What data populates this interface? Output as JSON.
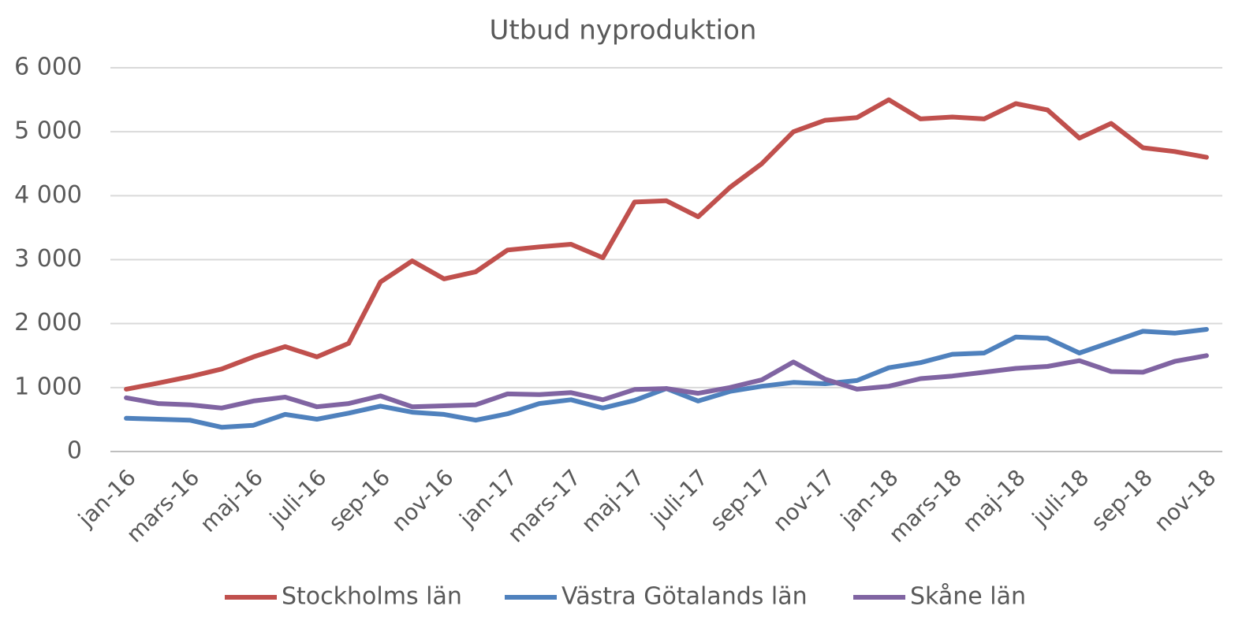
{
  "chart_data": {
    "type": "line",
    "title": "Utbud nyproduktion",
    "categories": [
      "jan-16",
      null,
      "mars-16",
      null,
      "maj-16",
      null,
      "juli-16",
      null,
      "sep-16",
      null,
      "nov-16",
      null,
      "jan-17",
      null,
      "mars-17",
      null,
      "maj-17",
      null,
      "juli-17",
      null,
      "sep-17",
      null,
      "nov-17",
      null,
      "jan-18",
      null,
      "mars-18",
      null,
      "maj-18",
      null,
      "juli-18",
      null,
      "sep-18",
      null,
      "nov-18"
    ],
    "series": [
      {
        "name": "Stockholms län",
        "color": "#c0504d",
        "values": [
          975,
          1070,
          1170,
          1290,
          1480,
          1640,
          1480,
          1690,
          2650,
          2980,
          2700,
          2810,
          3150,
          3200,
          3240,
          3030,
          3900,
          3920,
          3670,
          4130,
          4500,
          5000,
          5180,
          5220,
          5500,
          5200,
          5230,
          5200,
          5440,
          5340,
          4900,
          5130,
          4750,
          4690,
          4600
        ]
      },
      {
        "name": "Västra Götalands län",
        "color": "#4f81bd",
        "values": [
          520,
          505,
          490,
          380,
          410,
          580,
          505,
          600,
          710,
          615,
          580,
          490,
          590,
          750,
          810,
          680,
          800,
          985,
          790,
          940,
          1020,
          1080,
          1060,
          1110,
          1310,
          1390,
          1520,
          1540,
          1790,
          1770,
          1540,
          1710,
          1880,
          1850,
          1910
        ]
      },
      {
        "name": "Skåne län",
        "color": "#8064a2",
        "values": [
          840,
          750,
          730,
          680,
          790,
          850,
          700,
          750,
          870,
          700,
          715,
          730,
          900,
          890,
          920,
          810,
          970,
          985,
          910,
          1000,
          1120,
          1400,
          1130,
          975,
          1020,
          1140,
          1180,
          1240,
          1300,
          1330,
          1420,
          1250,
          1240,
          1410,
          1500
        ]
      }
    ],
    "ylim": [
      0,
      6000
    ],
    "yticks": [
      0,
      {
        "value": 1000,
        "label": "1 000"
      },
      {
        "value": 2000,
        "label": "2 000"
      },
      {
        "value": 3000,
        "label": "3 000"
      },
      {
        "value": 4000,
        "label": "4 000"
      },
      {
        "value": 5000,
        "label": "5 000"
      },
      {
        "value": 6000,
        "label": "6 000"
      }
    ],
    "grid": true,
    "legend": "bottom"
  }
}
